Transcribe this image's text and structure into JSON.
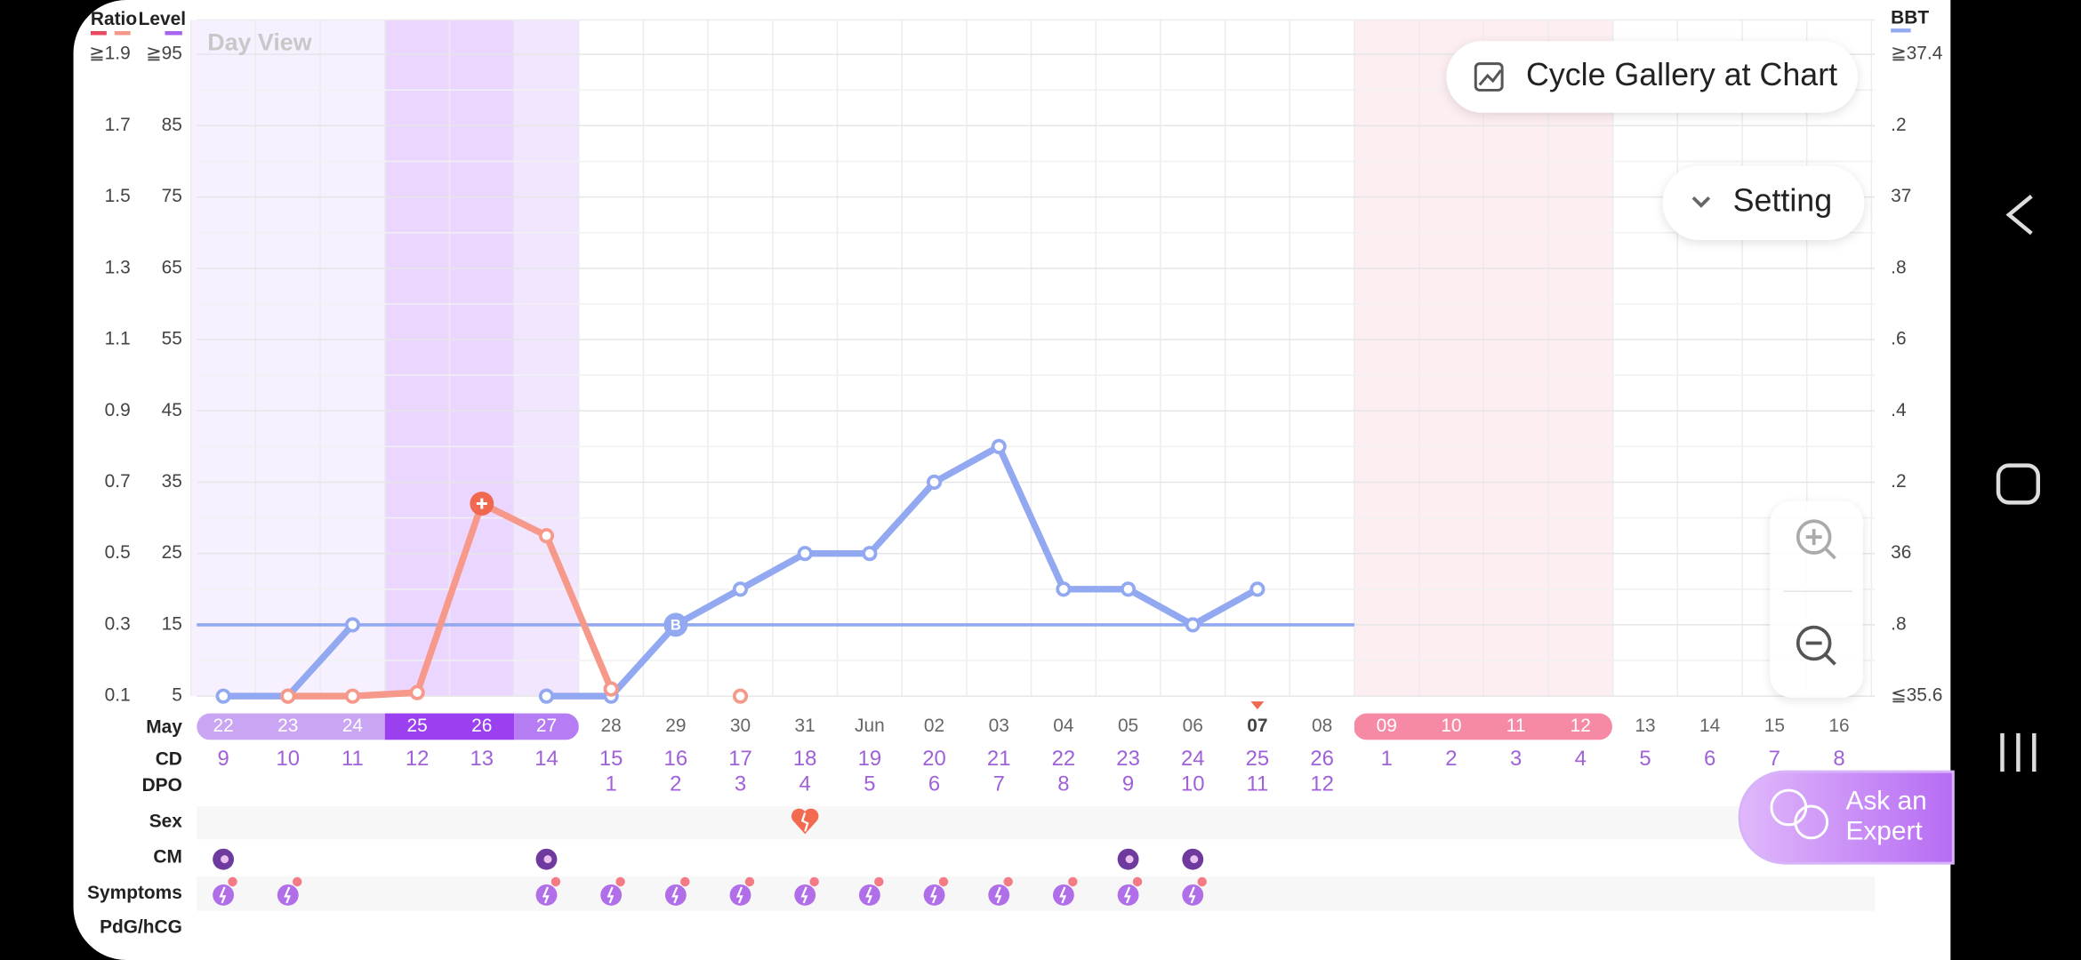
{
  "chart_data": {
    "type": "line",
    "view_label": "Day View",
    "level_label": "Level",
    "month_label": "May",
    "categories": [
      "22",
      "23",
      "24",
      "25",
      "26",
      "27",
      "28",
      "29",
      "30",
      "31",
      "Jun",
      "02",
      "03",
      "04",
      "05",
      "06",
      "07",
      "08",
      "09",
      "10",
      "11",
      "12",
      "13",
      "14",
      "15",
      "16"
    ],
    "cd": [
      9,
      10,
      11,
      12,
      13,
      14,
      15,
      16,
      17,
      18,
      19,
      20,
      21,
      22,
      23,
      24,
      25,
      26,
      1,
      2,
      3,
      4,
      5,
      6,
      7,
      8
    ],
    "dpo": [
      null,
      null,
      null,
      null,
      null,
      null,
      1,
      2,
      3,
      4,
      5,
      6,
      7,
      8,
      9,
      10,
      11,
      12,
      null,
      null,
      null,
      null,
      null,
      null,
      null,
      null
    ],
    "row_labels": {
      "cd": "CD",
      "dpo": "DPO",
      "sex": "Sex",
      "cm": "CM",
      "symptoms": "Symptoms",
      "pdg": "PdG/hCG"
    },
    "ylim": [
      0.1,
      1.9
    ],
    "yticks": [
      0.1,
      0.3,
      0.5,
      0.7,
      0.9,
      1.1,
      1.3,
      1.5,
      1.7,
      {
        "value": 1.9,
        "label": "≧1.9"
      }
    ],
    "level_lim": [
      5,
      95
    ],
    "level_ticks": [
      5,
      15,
      25,
      35,
      45,
      55,
      65,
      75,
      85,
      {
        "value": 95,
        "label": "≧95"
      }
    ],
    "y2lim": [
      35.6,
      37.4
    ],
    "y2ticks": [
      {
        "value": 35.6,
        "label": "≦35.6"
      },
      {
        "value": 35.8,
        "label": ".8"
      },
      36,
      {
        "value": 36.2,
        "label": ".2"
      },
      {
        "value": 36.4,
        "label": ".4"
      },
      {
        "value": 36.6,
        "label": ".6"
      },
      {
        "value": 36.8,
        "label": ".8"
      },
      37,
      {
        "value": 37.2,
        "label": ".2"
      },
      {
        "value": 37.4,
        "label": "≧37.4"
      }
    ],
    "series": [
      {
        "name": "Ratio",
        "color": "#f6998a",
        "values": [
          null,
          0.1,
          0.1,
          0.11,
          0.64,
          0.55,
          0.12,
          null,
          0.1,
          null,
          null,
          null,
          null,
          null,
          null,
          null,
          null,
          null,
          null,
          null,
          null,
          null,
          null,
          null,
          null,
          null
        ]
      },
      {
        "name": "BBT",
        "color": "#92a9f2",
        "axis": "y2",
        "values": [
          35.6,
          35.6,
          35.8,
          null,
          null,
          35.6,
          35.6,
          35.8,
          35.9,
          36.0,
          36.0,
          36.2,
          36.3,
          35.9,
          35.9,
          35.8,
          35.9,
          null,
          null,
          null,
          null,
          null,
          null,
          null,
          null,
          null
        ]
      }
    ],
    "cover_line": 35.8,
    "peak_marker_index": 4,
    "ovulation_marker": {
      "index": 7,
      "label": "B"
    },
    "fertile_range": [
      0,
      5
    ],
    "peak_range": [
      3,
      4
    ],
    "period_range": [
      18,
      21
    ],
    "today_index": 16,
    "grid": true,
    "sex_days": [
      9
    ],
    "cm_days": [
      0,
      5,
      14,
      15
    ],
    "symptom_days": [
      0,
      1,
      5,
      6,
      7,
      8,
      9,
      10,
      11,
      12,
      13,
      14,
      15
    ]
  },
  "buttons": {
    "gallery": "Cycle Gallery at Chart",
    "setting": "Setting",
    "expert_lines": [
      "Ask an",
      "Expert"
    ]
  }
}
